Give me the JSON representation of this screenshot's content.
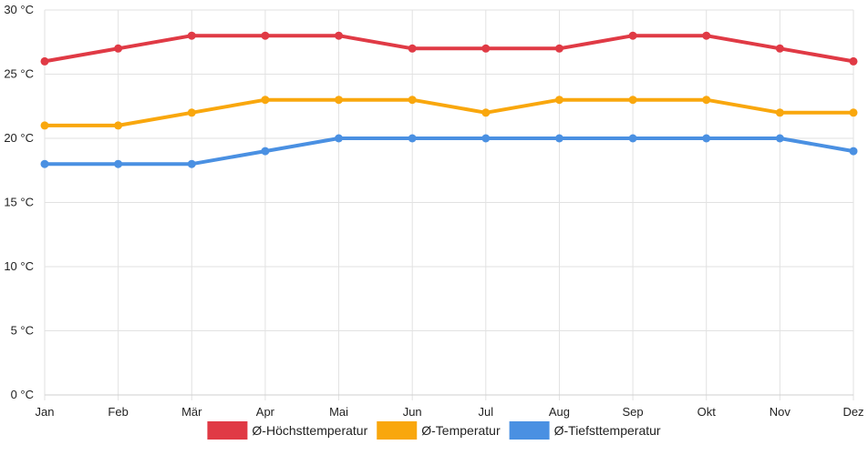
{
  "chart_data": {
    "type": "line",
    "title": "",
    "xlabel": "",
    "ylabel": "",
    "unit": "°C",
    "ylim": [
      0,
      30
    ],
    "yticks": [
      0,
      5,
      10,
      15,
      20,
      25,
      30
    ],
    "ytick_labels": [
      "0 °C",
      "5 °C",
      "10 °C",
      "15 °C",
      "20 °C",
      "25 °C",
      "30 °C"
    ],
    "categories": [
      "Jan",
      "Feb",
      "Mär",
      "Apr",
      "Mai",
      "Jun",
      "Jul",
      "Aug",
      "Sep",
      "Okt",
      "Nov",
      "Dez"
    ],
    "grid": true,
    "legend_position": "bottom",
    "series": [
      {
        "name": "Ø-Höchsttemperatur",
        "color": "#e03a45",
        "values": [
          26,
          27,
          28,
          28,
          28,
          27,
          27,
          27,
          28,
          28,
          27,
          26
        ]
      },
      {
        "name": "Ø-Temperatur",
        "color": "#f9a70d",
        "values": [
          21,
          21,
          22,
          23,
          23,
          23,
          22,
          23,
          23,
          23,
          22,
          22
        ]
      },
      {
        "name": "Ø-Tiefsttemperatur",
        "color": "#4a90e2",
        "values": [
          18,
          18,
          18,
          19,
          20,
          20,
          20,
          20,
          20,
          20,
          20,
          19
        ]
      }
    ]
  }
}
